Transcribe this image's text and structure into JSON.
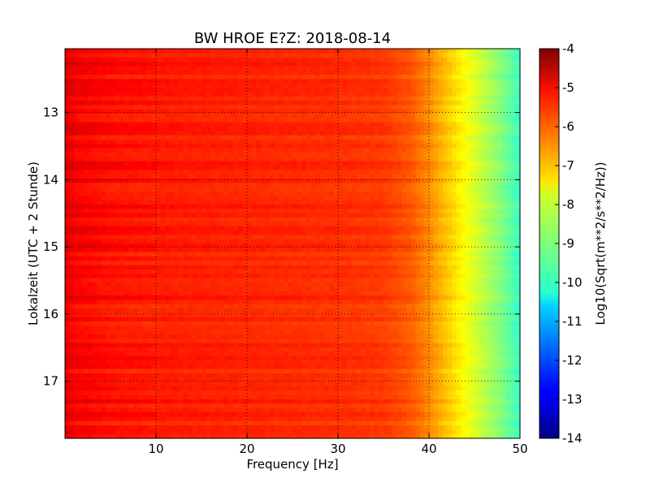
{
  "chart_data": {
    "type": "heatmap",
    "title": "BW HROE E?Z: 2018-08-14",
    "xlabel": "Frequency [Hz]",
    "ylabel": "Lokalzeit (UTC + 2 Stunde)",
    "xlim": [
      0,
      50
    ],
    "ylim": [
      12.05,
      17.85
    ],
    "y_inverted": true,
    "x_ticks": [
      "10",
      "20",
      "30",
      "40",
      "50"
    ],
    "x_tick_values": [
      10,
      20,
      30,
      40,
      50
    ],
    "y_ticks": [
      "13",
      "14",
      "15",
      "16",
      "17"
    ],
    "y_tick_values": [
      13,
      14,
      15,
      16,
      17
    ],
    "grid": true,
    "colormap": "jet",
    "colorbar": {
      "label": "Log10(Sqrt(m**2/s**2/Hz))",
      "range": [
        -14,
        -4
      ],
      "ticks": [
        "-4",
        "-5",
        "-6",
        "-7",
        "-8",
        "-9",
        "-10",
        "-11",
        "-12",
        "-13",
        "-14"
      ],
      "tick_values": [
        -4,
        -5,
        -6,
        -7,
        -8,
        -9,
        -10,
        -11,
        -12,
        -13,
        -14
      ]
    },
    "spectrum_profile": {
      "frequency_hz": [
        0,
        1,
        3,
        5,
        10,
        20,
        30,
        35,
        38,
        40,
        42,
        44,
        46,
        48,
        50
      ],
      "log10_amplitude": [
        -4.9,
        -5.2,
        -5.3,
        -5.4,
        -5.5,
        -5.6,
        -5.7,
        -5.8,
        -6.1,
        -6.6,
        -7.2,
        -7.8,
        -8.4,
        -9.0,
        -9.7
      ]
    }
  }
}
